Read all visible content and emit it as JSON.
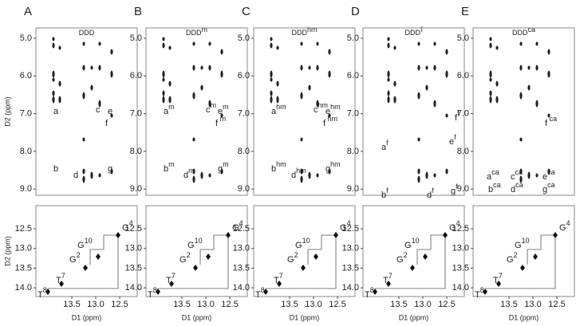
{
  "panels": [
    {
      "letter": "A",
      "title": {
        "base": "DDD",
        "sup": ""
      },
      "labels": [
        {
          "base": "a",
          "sup": ""
        },
        {
          "base": "b",
          "sup": ""
        },
        {
          "base": "c",
          "sup": ""
        },
        {
          "base": "d",
          "sup": ""
        },
        {
          "base": "e",
          "sup": ""
        },
        {
          "base": "f",
          "sup": ""
        },
        {
          "base": "g",
          "sup": ""
        }
      ]
    },
    {
      "letter": "B",
      "title": {
        "base": "DDD",
        "sup": "m"
      },
      "labels": [
        {
          "base": "a",
          "sup": "m"
        },
        {
          "base": "b",
          "sup": "m"
        },
        {
          "base": "c",
          "sup": "m"
        },
        {
          "base": "d",
          "sup": "m"
        },
        {
          "base": "e",
          "sup": "m"
        },
        {
          "base": "f",
          "sup": " m"
        },
        {
          "base": "g",
          "sup": "m"
        }
      ]
    },
    {
      "letter": "C",
      "title": {
        "base": "DDD",
        "sup": "hm"
      },
      "labels": [
        {
          "base": "a",
          "sup": "hm"
        },
        {
          "base": "b",
          "sup": "hm"
        },
        {
          "base": "c",
          "sup": "hm"
        },
        {
          "base": "d",
          "sup": "hm"
        },
        {
          "base": "e",
          "sup": "hm"
        },
        {
          "base": "f",
          "sup": " hm"
        },
        {
          "base": "g",
          "sup": "hm"
        }
      ]
    },
    {
      "letter": "D",
      "title": {
        "base": "DDD",
        "sup": "f"
      },
      "labels": [
        {
          "base": "a",
          "sup": "f"
        },
        {
          "base": "b",
          "sup": "f"
        },
        {
          "base": "d",
          "sup": "f"
        },
        {
          "base": "e",
          "sup": "f"
        },
        {
          "base": "f",
          "sup": "f"
        },
        {
          "base": "g",
          "sup": "f"
        }
      ]
    },
    {
      "letter": "E",
      "title": {
        "base": "DDD",
        "sup": "ca"
      },
      "labels": [
        {
          "base": "a",
          "sup": "ca"
        },
        {
          "base": "b",
          "sup": "ca"
        },
        {
          "base": "c",
          "sup": "ca"
        },
        {
          "base": "d",
          "sup": "ca"
        },
        {
          "base": "e",
          "sup": "ca"
        },
        {
          "base": "f",
          "sup": " ca"
        },
        {
          "base": "g",
          "sup": "ca"
        }
      ]
    }
  ],
  "imino_labels": [
    {
      "base": "T",
      "sup": "8"
    },
    {
      "base": "T",
      "sup": "7"
    },
    {
      "base": "G",
      "sup": "2"
    },
    {
      "base": "G",
      "sup": "10"
    },
    {
      "base": "G",
      "sup": "4"
    }
  ],
  "y_axis_label": "D2 (ppm)",
  "x_axis_label": "D1 (ppm)",
  "top_yticks": [
    "5.0",
    "6.0",
    "7.0",
    "8.0",
    "9.0"
  ],
  "bottom_yticks": [
    "12.5",
    "13.0",
    "13.5",
    "14.0"
  ],
  "xticks": [
    "13.5",
    "13.0",
    "12.5"
  ]
}
